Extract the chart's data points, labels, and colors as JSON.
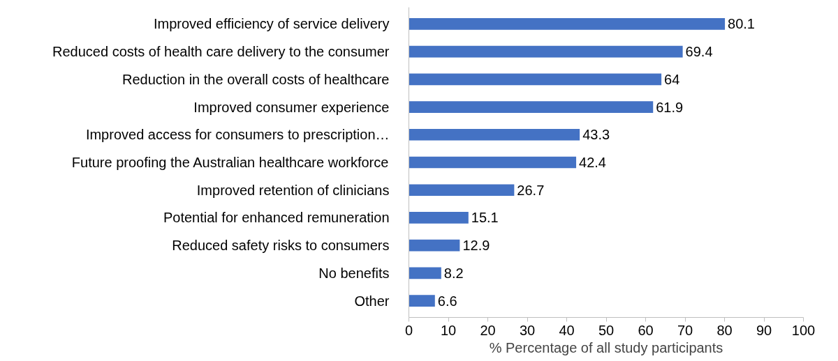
{
  "chart_data": {
    "type": "bar",
    "orientation": "horizontal",
    "xlabel": "% Percentage of all study participants",
    "categories": [
      "Improved efficiency of service delivery",
      "Reduced costs of health care delivery to the consumer",
      "Reduction in the overall costs of healthcare",
      "Improved consumer experience",
      "Improved access for consumers to prescription…",
      "Future proofing the Australian healthcare workforce",
      "Improved retention of clinicians",
      "Potential for enhanced remuneration",
      "Reduced safety risks to consumers",
      "No benefits",
      "Other"
    ],
    "values": [
      80.1,
      69.4,
      64,
      61.9,
      43.3,
      42.4,
      26.7,
      15.1,
      12.9,
      8.2,
      6.6
    ],
    "color": "#4472c4",
    "xlim": [
      0,
      100
    ],
    "xticks": [
      0,
      10,
      20,
      30,
      40,
      50,
      60,
      70,
      80,
      90,
      100
    ],
    "data_labels": true
  }
}
